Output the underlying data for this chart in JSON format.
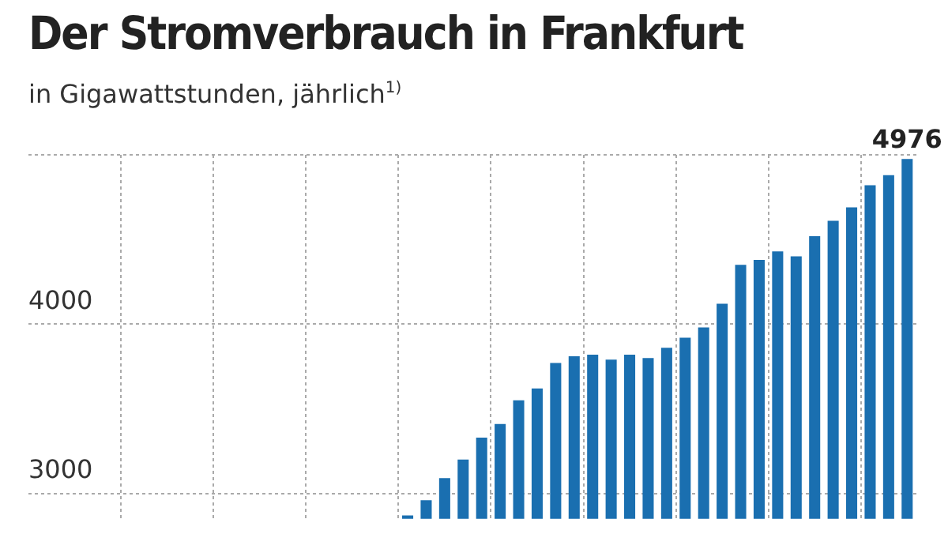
{
  "chart_data": {
    "type": "bar",
    "title": "Der Stromverbrauch in Frankfurt",
    "subtitle": "in Gigawattstunden, jährlich$^{1)}$",
    "categories": [
      null,
      null,
      null,
      null,
      null,
      null,
      null,
      null,
      null,
      null,
      null,
      null,
      null,
      null,
      null,
      null,
      null,
      null,
      null,
      null,
      null,
      null,
      null,
      null,
      null,
      null,
      null,
      null,
      null,
      null,
      null,
      null,
      null,
      null,
      null,
      null,
      null,
      null,
      null,
      null,
      null,
      null,
      null,
      null,
      null,
      null,
      null,
      null
    ],
    "values": [
      null,
      null,
      null,
      null,
      null,
      null,
      null,
      null,
      null,
      null,
      null,
      null,
      null,
      null,
      null,
      null,
      null,
      null,
      null,
      null,
      2870,
      2960,
      3090,
      3200,
      3330,
      3410,
      3550,
      3620,
      3770,
      3810,
      3820,
      3790,
      3820,
      3800,
      3860,
      3920,
      3980,
      4120,
      4350,
      4380,
      4430,
      4400,
      4520,
      4610,
      4690,
      4820,
      4880,
      4976
    ],
    "value_labels": [
      null,
      null,
      null,
      null,
      null,
      null,
      null,
      null,
      null,
      null,
      null,
      null,
      null,
      null,
      null,
      null,
      null,
      null,
      null,
      null,
      null,
      null,
      null,
      null,
      null,
      null,
      null,
      null,
      null,
      null,
      null,
      null,
      null,
      null,
      null,
      null,
      null,
      null,
      null,
      null,
      null,
      null,
      null,
      null,
      null,
      null,
      null,
      "4976"
    ],
    "color": "#1a6fb0",
    "ylim": [
      2850,
      5000
    ],
    "yticks": [
      3000,
      4000,
      {
        "value": 5000,
        "label": null
      }
    ],
    "grid": true,
    "tick_labels": "y"
  }
}
